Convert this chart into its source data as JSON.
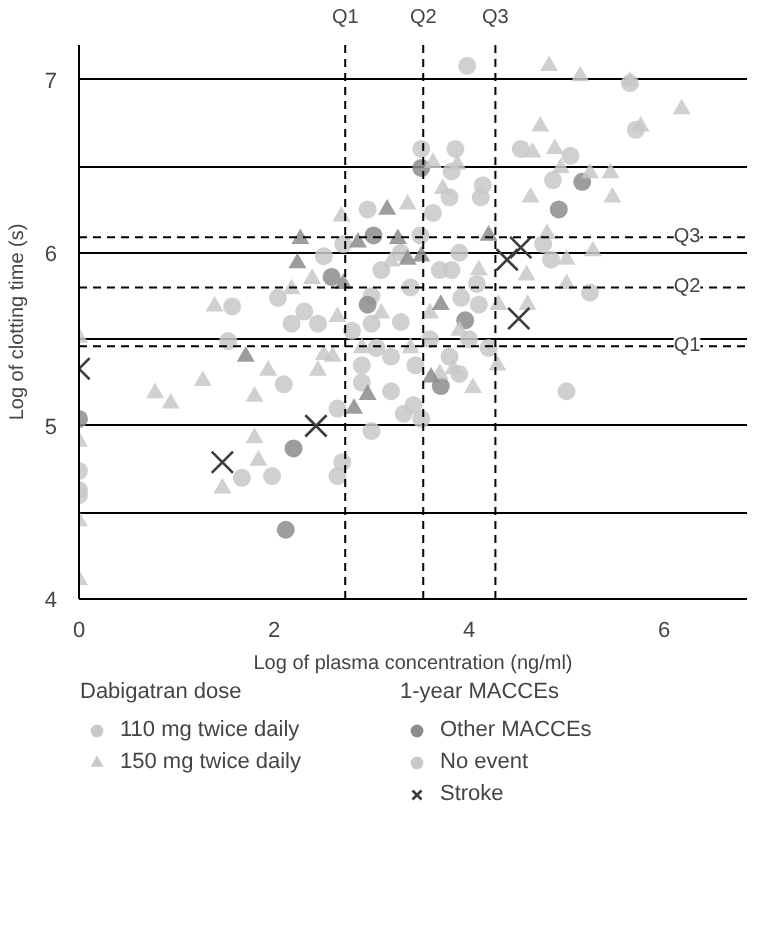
{
  "chart_data": {
    "type": "scatter",
    "xlabel": "Log of plasma concentration (ng/ml)",
    "ylabel": "Log of clotting time (s)",
    "xlim": [
      0,
      6.85
    ],
    "ylim": [
      4,
      7.2
    ],
    "xticks": [
      0,
      2,
      4,
      6
    ],
    "yticks": [
      4,
      {
        "value": 4.5,
        "label": null
      },
      5,
      {
        "value": 5.5,
        "label": null
      },
      6,
      {
        "value": 6.5,
        "label": null
      },
      7
    ],
    "grid": "y",
    "legend": "bottom",
    "legend_title": [
      "Dabigatran dose",
      "1-year MACCEs"
    ],
    "ref_lines": [
      {
        "axis": "x",
        "value": 2.73,
        "label": "Q1",
        "line_style": "dashed"
      },
      {
        "axis": "x",
        "value": 3.53,
        "label": "Q2",
        "line_style": "dashed"
      },
      {
        "axis": "x",
        "value": 4.27,
        "label": "Q3",
        "line_style": "dashed"
      },
      {
        "axis": "y",
        "value": 5.46,
        "label": "Q1",
        "line_style": "dashed"
      },
      {
        "axis": "y",
        "value": 5.8,
        "label": "Q2",
        "line_style": "dashed"
      },
      {
        "axis": "y",
        "value": 6.09,
        "label": "Q3",
        "line_style": "dashed"
      }
    ],
    "series": [
      {
        "name": "110 mg twice daily",
        "marker": "circle",
        "color": "#c8c8c8",
        "x": [
          0,
          0,
          0,
          1.53,
          2.1,
          1.67,
          1.98,
          2.65,
          2.7,
          2.65,
          3.0,
          2.9,
          5.0,
          3.43,
          3.51,
          3.33,
          3.98,
          5.65,
          5.71,
          3.51,
          3.86,
          4.53,
          5.04,
          3.82,
          4.86,
          4.14,
          4.12,
          3.8,
          3.63,
          5.24,
          4.76,
          3.82,
          4.08,
          3.92,
          4.84,
          2.96,
          1.57,
          2.51,
          2.71,
          2.04,
          2.31,
          2.45,
          2.18,
          3.0,
          3.05,
          3.2,
          3.3,
          3.4,
          3.6,
          3.8,
          3.1,
          3.5,
          3.9,
          4.0,
          4.1,
          3.7,
          3.2,
          2.9,
          3.0,
          3.45,
          3.9,
          4.2,
          2.8,
          3.3,
          0,
          2.2,
          2.12,
          3.71,
          3.51,
          5.16,
          4.92,
          3.96,
          3.02,
          2.59,
          2.96
        ],
        "values": [
          4.74,
          4.63,
          4.6,
          5.49,
          5.24,
          4.7,
          4.71,
          4.71,
          4.79,
          5.1,
          4.97,
          5.25,
          5.2,
          5.12,
          5.04,
          5.07,
          7.08,
          6.98,
          6.71,
          6.6,
          6.6,
          6.6,
          6.56,
          6.47,
          6.42,
          6.39,
          6.32,
          6.32,
          6.23,
          5.77,
          6.05,
          5.9,
          5.82,
          5.74,
          5.96,
          6.25,
          5.69,
          5.98,
          6.05,
          5.74,
          5.66,
          5.59,
          5.59,
          5.59,
          5.45,
          5.4,
          5.6,
          5.8,
          5.5,
          5.4,
          5.9,
          6.1,
          6.0,
          5.5,
          5.7,
          5.9,
          5.2,
          5.35,
          5.75,
          5.35,
          5.3,
          5.45,
          5.55,
          6.0,
          5.04,
          4.87,
          4.4,
          5.23,
          6.49,
          6.41,
          6.25,
          5.61,
          6.1,
          5.86,
          5.7
        ],
        "colors": [
          "#c8c8c8",
          "#c8c8c8",
          "#c8c8c8",
          "#c8c8c8",
          "#c8c8c8",
          "#c8c8c8",
          "#c8c8c8",
          "#c8c8c8",
          "#c8c8c8",
          "#c8c8c8",
          "#c8c8c8",
          "#c8c8c8",
          "#c8c8c8",
          "#c8c8c8",
          "#c8c8c8",
          "#c8c8c8",
          "#c8c8c8",
          "#c8c8c8",
          "#c8c8c8",
          "#c8c8c8",
          "#c8c8c8",
          "#c8c8c8",
          "#c8c8c8",
          "#c8c8c8",
          "#c8c8c8",
          "#c8c8c8",
          "#c8c8c8",
          "#c8c8c8",
          "#c8c8c8",
          "#c8c8c8",
          "#c8c8c8",
          "#c8c8c8",
          "#c8c8c8",
          "#c8c8c8",
          "#c8c8c8",
          "#c8c8c8",
          "#c8c8c8",
          "#c8c8c8",
          "#c8c8c8",
          "#c8c8c8",
          "#c8c8c8",
          "#c8c8c8",
          "#c8c8c8",
          "#c8c8c8",
          "#c8c8c8",
          "#c8c8c8",
          "#c8c8c8",
          "#c8c8c8",
          "#c8c8c8",
          "#c8c8c8",
          "#c8c8c8",
          "#c8c8c8",
          "#c8c8c8",
          "#c8c8c8",
          "#c8c8c8",
          "#c8c8c8",
          "#c8c8c8",
          "#c8c8c8",
          "#c8c8c8",
          "#c8c8c8",
          "#c8c8c8",
          "#c8c8c8",
          "#c8c8c8",
          "#c8c8c8",
          "#8c8c8c",
          "#8c8c8c",
          "#8c8c8c",
          "#8c8c8c",
          "#8c8c8c",
          "#8c8c8c",
          "#8c8c8c",
          "#8c8c8c",
          "#8c8c8c",
          "#8c8c8c",
          "#8c8c8c"
        ]
      },
      {
        "name": "150 mg twice daily",
        "marker": "triangle",
        "color": "#c8c8c8",
        "x": [
          0,
          0,
          0,
          0,
          0.78,
          0.94,
          1.27,
          1.8,
          1.94,
          1.8,
          1.84,
          1.47,
          2.45,
          2.51,
          4.04,
          4.29,
          3.84,
          4.82,
          5.14,
          5.65,
          6.18,
          5.76,
          4.73,
          4.65,
          4.88,
          3.63,
          3.88,
          4.94,
          5.24,
          5.45,
          5.47,
          4.63,
          3.73,
          3.37,
          5.0,
          5.27,
          5.0,
          4.8,
          4.59,
          2.69,
          1.39,
          2.18,
          2.39,
          2.65,
          3.1,
          3.6,
          3.9,
          4.1,
          3.4,
          2.9,
          3.7,
          4.3,
          3.2,
          2.6,
          4.6,
          1.71,
          2.96,
          2.82,
          3.61,
          3.16,
          4.2,
          3.71,
          3.37,
          3.51,
          3.27,
          2.27,
          2.24,
          2.86,
          2.71
        ],
        "values": [
          5.51,
          4.91,
          4.45,
          4.11,
          5.19,
          5.13,
          5.26,
          5.17,
          5.32,
          4.93,
          4.8,
          4.64,
          5.32,
          5.41,
          5.22,
          5.35,
          5.33,
          7.08,
          7.02,
          6.99,
          6.83,
          6.73,
          6.73,
          6.58,
          6.6,
          6.52,
          6.51,
          6.49,
          6.46,
          6.46,
          6.32,
          6.32,
          6.37,
          6.28,
          5.82,
          6.01,
          5.96,
          6.11,
          5.87,
          6.21,
          5.69,
          5.79,
          5.85,
          5.63,
          5.65,
          5.65,
          5.55,
          5.9,
          5.45,
          5.45,
          5.3,
          5.7,
          5.95,
          5.4,
          5.7,
          5.4,
          5.18,
          5.1,
          5.28,
          6.25,
          6.1,
          5.7,
          5.96,
          5.98,
          6.08,
          6.08,
          5.94,
          6.06,
          5.82
        ],
        "colors": [
          "#c8c8c8",
          "#c8c8c8",
          "#c8c8c8",
          "#c8c8c8",
          "#c8c8c8",
          "#c8c8c8",
          "#c8c8c8",
          "#c8c8c8",
          "#c8c8c8",
          "#c8c8c8",
          "#c8c8c8",
          "#c8c8c8",
          "#c8c8c8",
          "#c8c8c8",
          "#c8c8c8",
          "#c8c8c8",
          "#c8c8c8",
          "#c8c8c8",
          "#c8c8c8",
          "#c8c8c8",
          "#c8c8c8",
          "#c8c8c8",
          "#c8c8c8",
          "#c8c8c8",
          "#c8c8c8",
          "#c8c8c8",
          "#c8c8c8",
          "#c8c8c8",
          "#c8c8c8",
          "#c8c8c8",
          "#c8c8c8",
          "#c8c8c8",
          "#c8c8c8",
          "#c8c8c8",
          "#c8c8c8",
          "#c8c8c8",
          "#c8c8c8",
          "#c8c8c8",
          "#c8c8c8",
          "#c8c8c8",
          "#c8c8c8",
          "#c8c8c8",
          "#c8c8c8",
          "#c8c8c8",
          "#c8c8c8",
          "#c8c8c8",
          "#c8c8c8",
          "#c8c8c8",
          "#c8c8c8",
          "#c8c8c8",
          "#c8c8c8",
          "#c8c8c8",
          "#c8c8c8",
          "#c8c8c8",
          "#c8c8c8",
          "#8c8c8c",
          "#8c8c8c",
          "#8c8c8c",
          "#8c8c8c",
          "#8c8c8c",
          "#8c8c8c",
          "#8c8c8c",
          "#8c8c8c",
          "#8c8c8c",
          "#8c8c8c",
          "#8c8c8c",
          "#8c8c8c",
          "#8c8c8c",
          "#8c8c8c"
        ]
      },
      {
        "name": "Other MACCEs",
        "marker": "circle",
        "color": "#8c8c8c"
      },
      {
        "name": "No event",
        "marker": "circle",
        "color": "#c8c8c8"
      },
      {
        "name": "Stroke",
        "marker": "cross",
        "color": "#3c3c3c",
        "x": [
          0,
          1.47,
          2.43,
          4.53,
          4.39,
          4.51
        ],
        "values": [
          5.33,
          4.79,
          5.0,
          6.03,
          5.96,
          5.62
        ]
      }
    ]
  }
}
